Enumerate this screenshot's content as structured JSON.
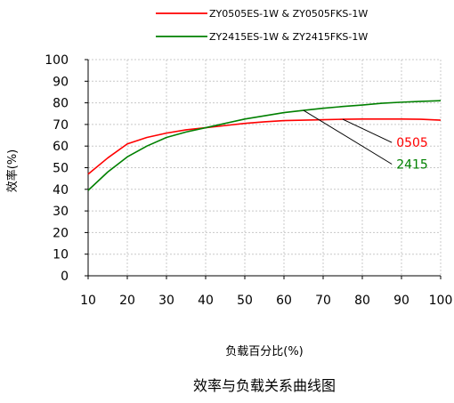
{
  "chart_data": {
    "type": "line",
    "title": "效率与负载关系曲线图",
    "xlabel": "负载百分比(%)",
    "ylabel": "效率(%)",
    "xlim": [
      10,
      100
    ],
    "ylim": [
      0,
      100
    ],
    "xticks": [
      10,
      20,
      30,
      40,
      50,
      60,
      70,
      80,
      90,
      100
    ],
    "yticks": [
      0,
      10,
      20,
      30,
      40,
      50,
      60,
      70,
      80,
      90,
      100
    ],
    "grid": true,
    "legend_position": "top",
    "series": [
      {
        "name": "ZY0505ES-1W & ZY0505FKS-1W",
        "color": "#ff0000",
        "x": [
          10,
          15,
          20,
          25,
          30,
          35,
          40,
          45,
          50,
          55,
          60,
          65,
          70,
          75,
          80,
          85,
          90,
          95,
          100
        ],
        "y": [
          47,
          54.5,
          61,
          64,
          66,
          67.5,
          68.5,
          69.5,
          70.5,
          71.2,
          71.8,
          72,
          72.2,
          72.4,
          72.5,
          72.5,
          72.5,
          72.4,
          72
        ]
      },
      {
        "name": "ZY2415ES-1W & ZY2415FKS-1W",
        "color": "#008000",
        "x": [
          10,
          15,
          20,
          25,
          30,
          35,
          40,
          45,
          50,
          55,
          60,
          65,
          70,
          75,
          80,
          85,
          90,
          95,
          100
        ],
        "y": [
          39.5,
          48,
          55,
          60,
          64,
          66.5,
          68.5,
          70.5,
          72.5,
          74,
          75.5,
          76.5,
          77.5,
          78.3,
          79,
          79.8,
          80.3,
          80.7,
          81
        ]
      }
    ],
    "annotations": [
      {
        "label": "0505",
        "color": "#ff0000",
        "points_to": [
          75,
          72.4
        ],
        "label_at": [
          88,
          60
        ]
      },
      {
        "label": "2415",
        "color": "#008000",
        "points_to": [
          65,
          76.5
        ],
        "label_at": [
          88,
          50
        ]
      }
    ]
  }
}
